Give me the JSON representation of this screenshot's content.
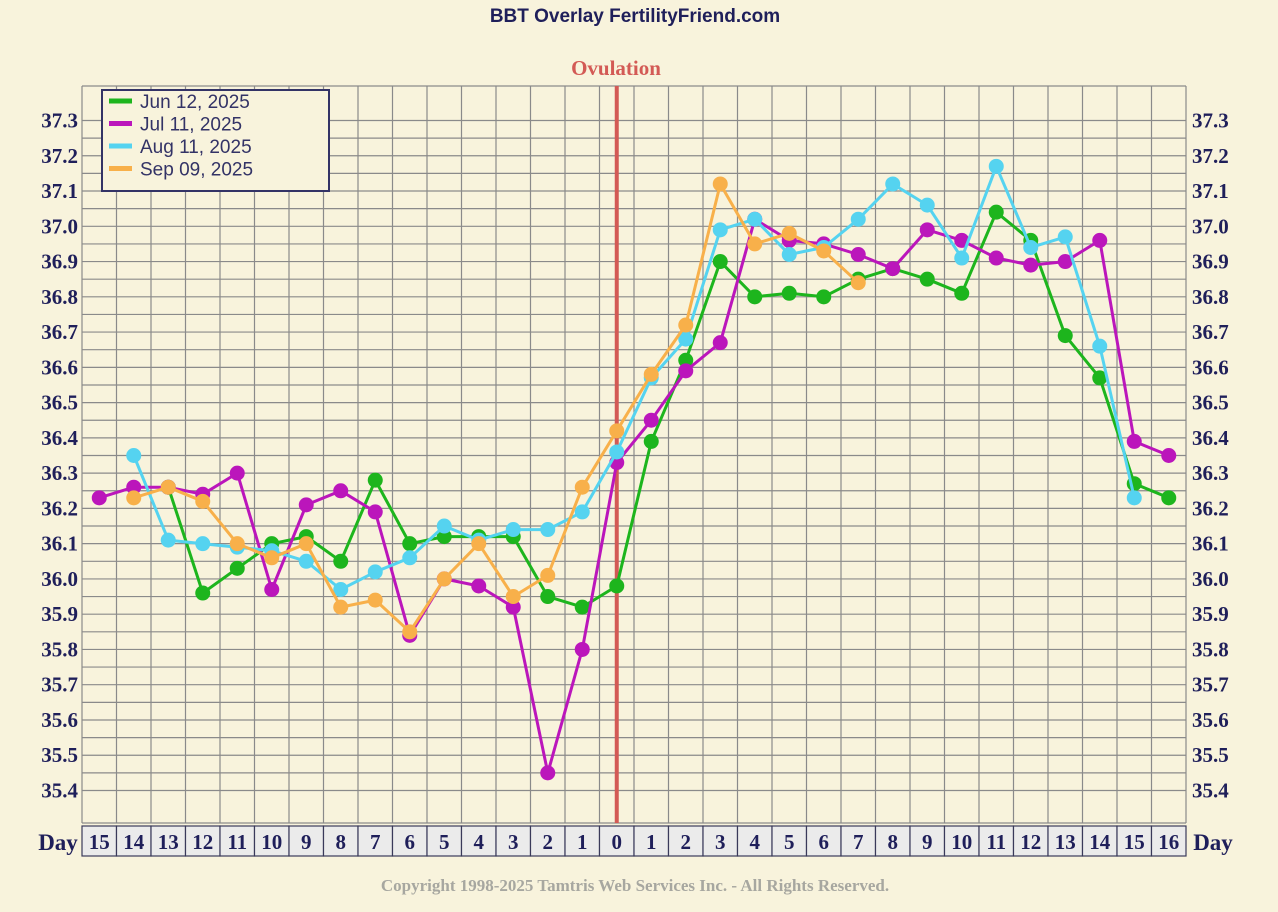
{
  "header": {
    "title": "BBT Overlay FertilityFriend.com",
    "ovulation_label": "Ovulation",
    "day_label": "Day",
    "copyright": "Copyright 1998-2025 Tamtris Web Services Inc. - All Rights Reserved."
  },
  "chart_data": {
    "type": "line",
    "title": "BBT Overlay FertilityFriend.com",
    "xlabel": "Day",
    "ylabel": "",
    "x_ticks": [
      "15",
      "14",
      "13",
      "12",
      "11",
      "10",
      "9",
      "8",
      "7",
      "6",
      "5",
      "4",
      "3",
      "2",
      "1",
      "0",
      "1",
      "2",
      "3",
      "4",
      "5",
      "6",
      "7",
      "8",
      "9",
      "10",
      "11",
      "12",
      "13",
      "14",
      "15",
      "16"
    ],
    "x_offsets": [
      -15,
      -14,
      -13,
      -12,
      -11,
      -10,
      -9,
      -8,
      -7,
      -6,
      -5,
      -4,
      -3,
      -2,
      -1,
      0,
      1,
      2,
      3,
      4,
      5,
      6,
      7,
      8,
      9,
      10,
      11,
      12,
      13,
      14,
      15,
      16
    ],
    "y_ticks": [
      "37.3",
      "37.2",
      "37.1",
      "37.0",
      "36.9",
      "36.8",
      "36.7",
      "36.6",
      "36.5",
      "36.4",
      "36.3",
      "36.2",
      "36.1",
      "36.0",
      "35.9",
      "35.8",
      "35.7",
      "35.6",
      "35.5",
      "35.4"
    ],
    "ylim": [
      35.35,
      37.35
    ],
    "ovulation_day": 0,
    "grid": true,
    "legend_position": "top-left",
    "series": [
      {
        "name": "Jun 12, 2025",
        "color": "#1db51d",
        "points": [
          [
            -13,
            36.26
          ],
          [
            -12,
            35.96
          ],
          [
            -11,
            36.03
          ],
          [
            -10,
            36.1
          ],
          [
            -9,
            36.12
          ],
          [
            -8,
            36.05
          ],
          [
            -7,
            36.28
          ],
          [
            -6,
            36.1
          ],
          [
            -5,
            36.12
          ],
          [
            -4,
            36.12
          ],
          [
            -3,
            36.12
          ],
          [
            -2,
            35.95
          ],
          [
            -1,
            35.92
          ],
          [
            0,
            35.98
          ],
          [
            1,
            36.39
          ],
          [
            2,
            36.62
          ],
          [
            3,
            36.9
          ],
          [
            4,
            36.8
          ],
          [
            5,
            36.81
          ],
          [
            6,
            36.8
          ],
          [
            7,
            36.85
          ],
          [
            8,
            36.88
          ],
          [
            9,
            36.85
          ],
          [
            10,
            36.81
          ],
          [
            11,
            37.04
          ],
          [
            12,
            36.96
          ],
          [
            13,
            36.69
          ],
          [
            14,
            36.57
          ],
          [
            15,
            36.27
          ],
          [
            16,
            36.23
          ]
        ]
      },
      {
        "name": "Jul 11, 2025",
        "color": "#bb16bb",
        "points": [
          [
            -15,
            36.23
          ],
          [
            -14,
            36.26
          ],
          [
            -13,
            36.26
          ],
          [
            -12,
            36.24
          ],
          [
            -11,
            36.3
          ],
          [
            -10,
            35.97
          ],
          [
            -9,
            36.21
          ],
          [
            -8,
            36.25
          ],
          [
            -7,
            36.19
          ],
          [
            -6,
            35.84
          ],
          [
            -5,
            36.0
          ],
          [
            -4,
            35.98
          ],
          [
            -3,
            35.92
          ],
          [
            -2,
            35.45
          ],
          [
            -1,
            35.8
          ],
          [
            0,
            36.33
          ],
          [
            1,
            36.45
          ],
          [
            2,
            36.59
          ],
          [
            3,
            36.67
          ],
          [
            4,
            37.02
          ],
          [
            5,
            36.96
          ],
          [
            6,
            36.95
          ],
          [
            7,
            36.92
          ],
          [
            8,
            36.88
          ],
          [
            9,
            36.99
          ],
          [
            10,
            36.96
          ],
          [
            11,
            36.91
          ],
          [
            12,
            36.89
          ],
          [
            13,
            36.9
          ],
          [
            14,
            36.96
          ],
          [
            15,
            36.39
          ],
          [
            16,
            36.35
          ]
        ]
      },
      {
        "name": "Aug 11, 2025",
        "color": "#55d3f0",
        "points": [
          [
            -14,
            36.35
          ],
          [
            -13,
            36.11
          ],
          [
            -12,
            36.1
          ],
          [
            -11,
            36.09
          ],
          [
            -10,
            36.08
          ],
          [
            -9,
            36.05
          ],
          [
            -8,
            35.97
          ],
          [
            -7,
            36.02
          ],
          [
            -6,
            36.06
          ],
          [
            -5,
            36.15
          ],
          [
            -4,
            36.11
          ],
          [
            -3,
            36.14
          ],
          [
            -2,
            36.14
          ],
          [
            -1,
            36.19
          ],
          [
            0,
            36.36
          ],
          [
            1,
            36.57
          ],
          [
            2,
            36.68
          ],
          [
            3,
            36.99
          ],
          [
            4,
            37.02
          ],
          [
            5,
            36.92
          ],
          [
            6,
            36.94
          ],
          [
            7,
            37.02
          ],
          [
            8,
            37.12
          ],
          [
            9,
            37.06
          ],
          [
            10,
            36.91
          ],
          [
            11,
            37.17
          ],
          [
            12,
            36.94
          ],
          [
            13,
            36.97
          ],
          [
            14,
            36.66
          ],
          [
            15,
            36.23
          ]
        ]
      },
      {
        "name": "Sep 09, 2025",
        "color": "#f8b04a",
        "points": [
          [
            -14,
            36.23
          ],
          [
            -13,
            36.26
          ],
          [
            -12,
            36.22
          ],
          [
            -11,
            36.1
          ],
          [
            -10,
            36.06
          ],
          [
            -9,
            36.1
          ],
          [
            -8,
            35.92
          ],
          [
            -7,
            35.94
          ],
          [
            -6,
            35.85
          ],
          [
            -5,
            36.0
          ],
          [
            -4,
            36.1
          ],
          [
            -3,
            35.95
          ],
          [
            -2,
            36.01
          ],
          [
            -1,
            36.26
          ],
          [
            0,
            36.42
          ],
          [
            1,
            36.58
          ],
          [
            2,
            36.72
          ],
          [
            3,
            37.12
          ],
          [
            4,
            36.95
          ],
          [
            5,
            36.98
          ],
          [
            6,
            36.93
          ],
          [
            7,
            36.84
          ]
        ]
      }
    ]
  }
}
